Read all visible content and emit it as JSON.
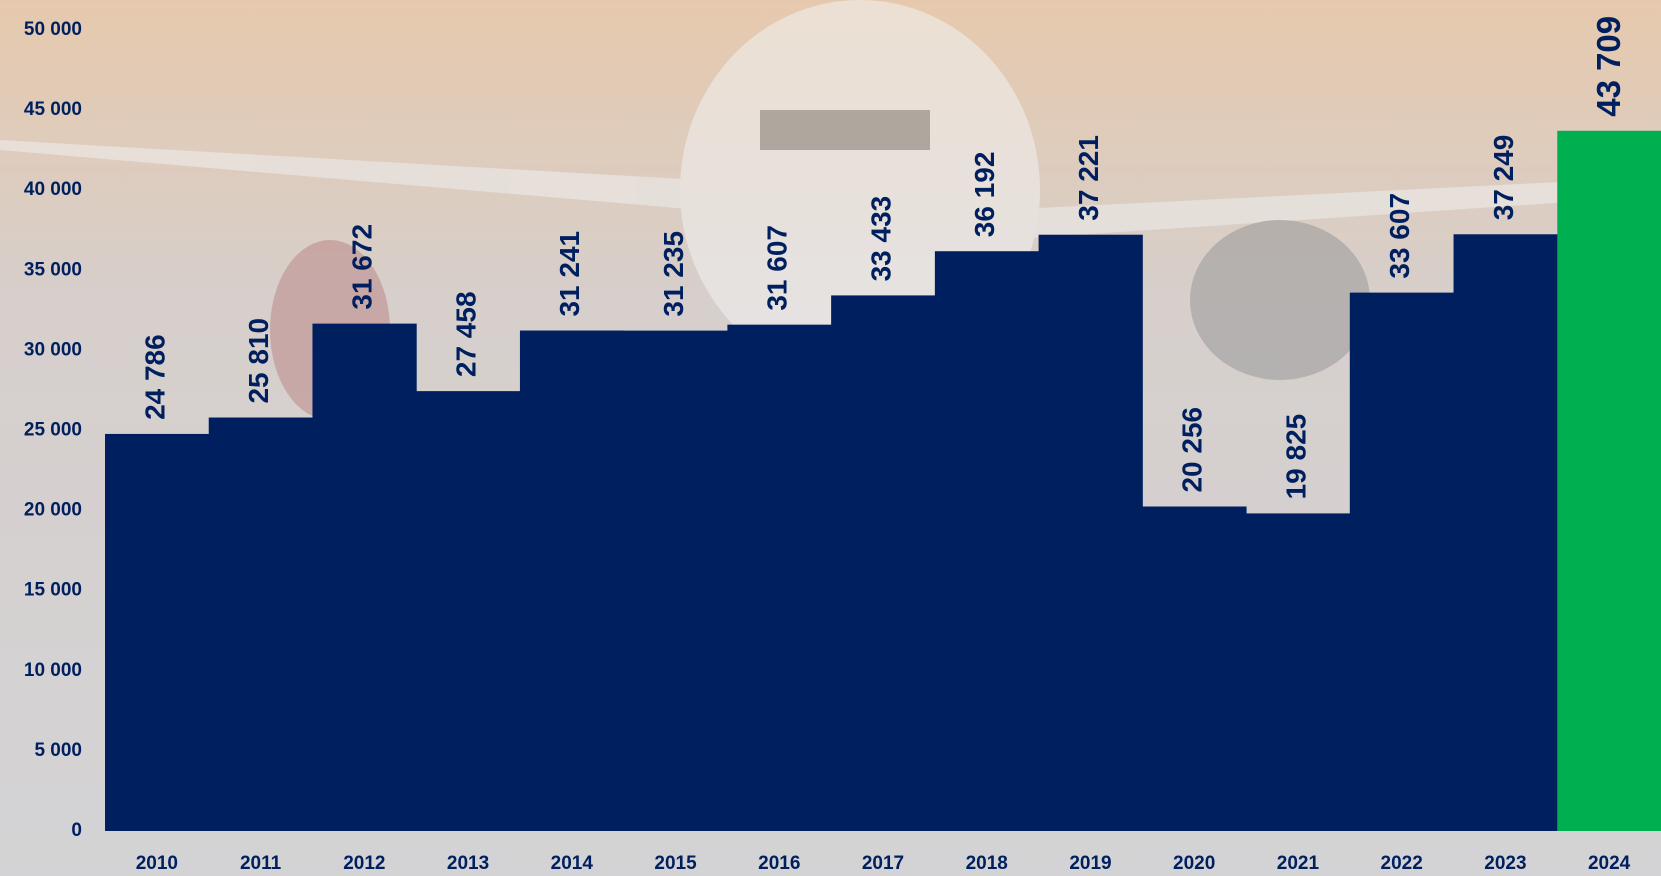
{
  "chart_data": {
    "type": "bar",
    "categories": [
      "2010",
      "2011",
      "2012",
      "2013",
      "2014",
      "2015",
      "2016",
      "2017",
      "2018",
      "2019",
      "2020",
      "2021",
      "2022",
      "2023",
      "2024"
    ],
    "values": [
      24786,
      25810,
      31672,
      27458,
      31241,
      31235,
      31607,
      33433,
      36192,
      37221,
      20256,
      19825,
      33607,
      37249,
      43709
    ],
    "value_labels": [
      "24 786",
      "25 810",
      "31 672",
      "27 458",
      "31 241",
      "31 235",
      "31 607",
      "33 433",
      "36 192",
      "37 221",
      "20 256",
      "19 825",
      "33 607",
      "37 249",
      "43 709"
    ],
    "colors": [
      "#001f5f",
      "#001f5f",
      "#001f5f",
      "#001f5f",
      "#001f5f",
      "#001f5f",
      "#001f5f",
      "#001f5f",
      "#001f5f",
      "#001f5f",
      "#001f5f",
      "#001f5f",
      "#001f5f",
      "#001f5f",
      "#00b050"
    ],
    "ylim": [
      0,
      50000
    ],
    "yticks": [
      {
        "value": 0,
        "label": "0"
      },
      {
        "value": 5000,
        "label": "5 000"
      },
      {
        "value": 10000,
        "label": "10 000"
      },
      {
        "value": 15000,
        "label": "15 000"
      },
      {
        "value": 20000,
        "label": "20 000"
      },
      {
        "value": 25000,
        "label": "25 000"
      },
      {
        "value": 30000,
        "label": "30 000"
      },
      {
        "value": 35000,
        "label": "35 000"
      },
      {
        "value": 40000,
        "label": "40 000"
      },
      {
        "value": 45000,
        "label": "45 000"
      },
      {
        "value": 50000,
        "label": "50 000"
      }
    ],
    "grid": false
  }
}
